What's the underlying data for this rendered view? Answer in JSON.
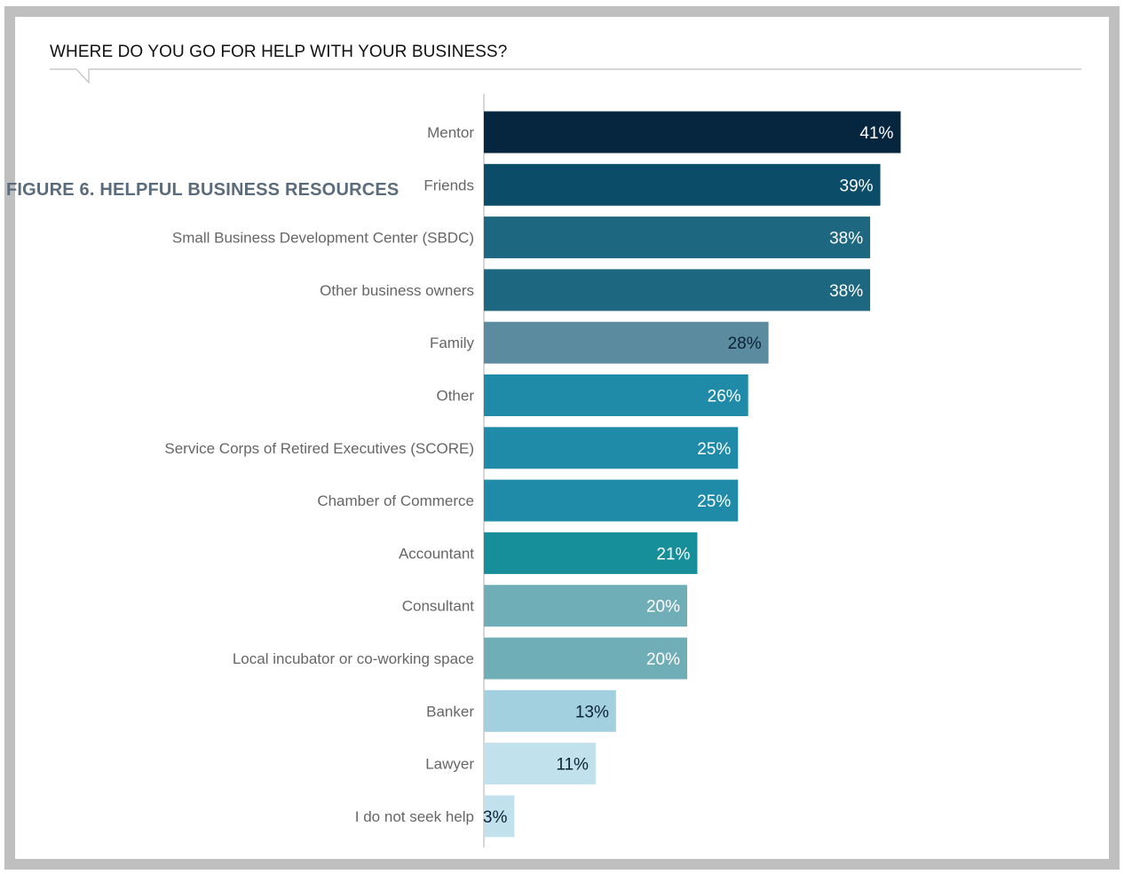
{
  "figure_label": "FIGURE 6. HELPFUL BUSINESS RESOURCES",
  "chart_data": {
    "type": "bar",
    "orientation": "horizontal",
    "title": "WHERE DO YOU GO FOR HELP WITH YOUR BUSINESS?",
    "xlabel": "",
    "ylabel": "",
    "xlim": [
      0,
      100
    ],
    "grid": false,
    "legend": "none",
    "categories": [
      "Mentor",
      "Friends",
      "Small Business Development Center (SBDC)",
      "Other business owners",
      "Family",
      "Other",
      "Service Corps of Retired Executives (SCORE)",
      "Chamber of Commerce",
      "Accountant",
      "Consultant",
      "Local incubator or co-working space",
      "Banker",
      "Lawyer",
      "I do not seek help"
    ],
    "values": [
      41,
      39,
      38,
      38,
      28,
      26,
      25,
      25,
      21,
      20,
      20,
      13,
      11,
      3
    ],
    "data_labels": [
      "41%",
      "39%",
      "38%",
      "38%",
      "28%",
      "26%",
      "25%",
      "25%",
      "21%",
      "20%",
      "20%",
      "13%",
      "11%",
      "3%"
    ],
    "bar_colors": [
      "#06263f",
      "#0b4d69",
      "#1d6880",
      "#1d6880",
      "#5a8b9e",
      "#1f8ba8",
      "#1f8ba8",
      "#1f8ba8",
      "#178f9b",
      "#70aeb7",
      "#70aeb7",
      "#a2d0df",
      "#c1e1ec",
      "#c1e1ec"
    ],
    "label_colors": [
      "#ffffff",
      "#ffffff",
      "#ffffff",
      "#ffffff",
      "#0b2238",
      "#ffffff",
      "#ffffff",
      "#ffffff",
      "#ffffff",
      "#ffffff",
      "#ffffff",
      "#0b2238",
      "#0b2238",
      "#0b2238"
    ]
  }
}
